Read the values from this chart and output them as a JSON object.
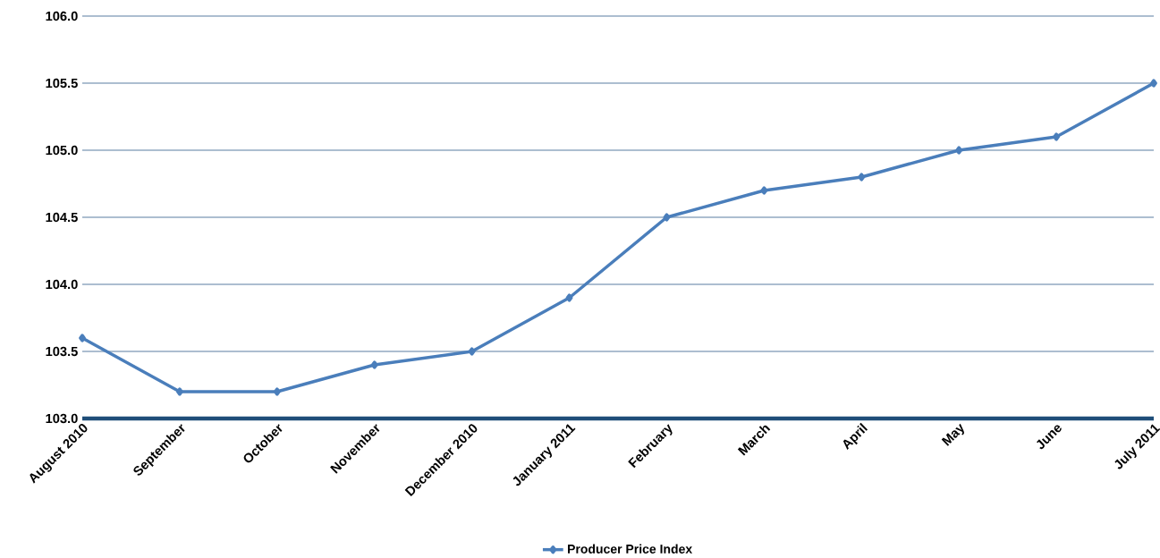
{
  "chart_data": {
    "type": "line",
    "categories": [
      "August 2010",
      "September",
      "October",
      "November",
      "December 2010",
      "January 2011",
      "February",
      "March",
      "April",
      "May",
      "June",
      "July 2011"
    ],
    "series": [
      {
        "name": "Producer Price Index",
        "color": "#4a7ebb",
        "values": [
          103.6,
          103.2,
          103.2,
          103.4,
          103.5,
          103.9,
          104.5,
          104.7,
          104.8,
          105.0,
          105.1,
          105.5
        ]
      }
    ],
    "ylim": [
      103,
      106
    ],
    "yticks": [
      {
        "value": 103,
        "label": "103.0"
      },
      {
        "value": 103.5,
        "label": "103.5"
      },
      {
        "value": 104,
        "label": "104.0"
      },
      {
        "value": 104.5,
        "label": "104.5"
      },
      {
        "value": 105,
        "label": "105.0"
      },
      {
        "value": 105.5,
        "label": "105.5"
      },
      {
        "value": 106,
        "label": "106.0"
      }
    ],
    "grid": "y",
    "legend": "bottom",
    "marker": "diamond",
    "line_style": "solid"
  }
}
